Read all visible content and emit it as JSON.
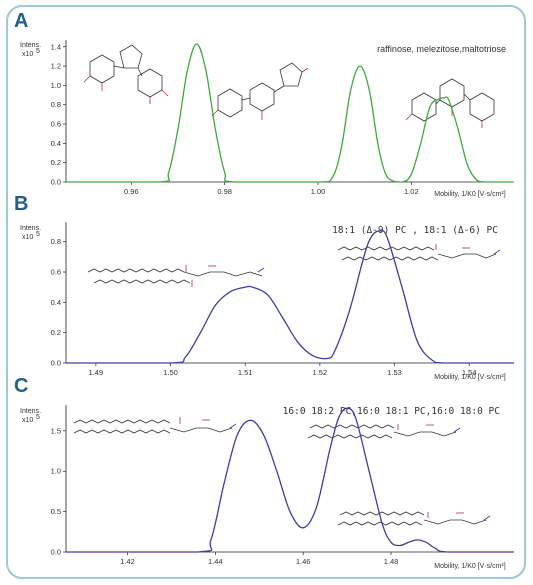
{
  "panels": [
    {
      "label": "A",
      "ylabel_top": "Intens.",
      "ylabel_bottom": "x10",
      "ylabel_exp": "5",
      "annotation": "raffinose, melezitose,maltotriose",
      "xlabel": "Mobility, 1/K0 [V·s/cm²]",
      "color": "#3caa3c"
    },
    {
      "label": "B",
      "ylabel_top": "Intens.",
      "ylabel_bottom": "x10",
      "ylabel_exp": "5",
      "annotation": "18:1 (Δ-9) PC , 18:1 (Δ-6) PC",
      "xlabel": "Mobility, 1/K0 [V·s/cm²]",
      "color": "#3c3ca8"
    },
    {
      "label": "C",
      "ylabel_top": "Intens.",
      "ylabel_bottom": "x10",
      "ylabel_exp": "5",
      "annotation": "16:0 18:2 PC,16:0 18:1 PC,16:0 18:0 PC",
      "xlabel": "Mobility, 1/K0 [V·s/cm²]",
      "color": "#3c3ca8"
    }
  ],
  "chart_data": [
    {
      "type": "line",
      "title": "raffinose, melezitose,maltotriose",
      "xlabel": "Mobility, 1/K0 [V·s/cm²]",
      "ylabel": "Intens. x10^5",
      "xlim": [
        0.946,
        1.042
      ],
      "ylim": [
        0,
        1.47
      ],
      "x_ticks": [
        "0.96",
        "0.98",
        "1.00",
        "1.02"
      ],
      "y_ticks": [
        "0.0",
        "0.2",
        "0.4",
        "0.6",
        "0.8",
        "1.0",
        "1.2",
        "1.4"
      ],
      "grid": false,
      "peaks": [
        {
          "x": 0.974,
          "y": 1.43
        },
        {
          "x": 1.009,
          "y": 1.2
        },
        {
          "x": 1.027,
          "y": 0.87
        }
      ],
      "series": [
        {
          "x": [
            0.946,
            0.966,
            0.968,
            0.97,
            0.972,
            0.974,
            0.976,
            0.978,
            0.98,
            0.982,
            1.0,
            1.003,
            1.005,
            1.007,
            1.009,
            1.011,
            1.013,
            1.015,
            1.018,
            1.02,
            1.022,
            1.024,
            1.026,
            1.027,
            1.028,
            1.03,
            1.032,
            1.034,
            1.036,
            1.042
          ],
          "y": [
            0.0,
            0.0,
            0.1,
            0.55,
            1.15,
            1.43,
            1.15,
            0.55,
            0.1,
            0.0,
            0.0,
            0.04,
            0.35,
            0.95,
            1.2,
            0.95,
            0.35,
            0.04,
            0.0,
            0.08,
            0.4,
            0.78,
            0.86,
            0.87,
            0.85,
            0.55,
            0.18,
            0.02,
            0.0,
            0.0
          ]
        }
      ]
    },
    {
      "type": "line",
      "title": "18:1 (Δ-9) PC , 18:1 (Δ-6) PC",
      "xlabel": "Mobility, 1/K0 [V·s/cm²]",
      "ylabel": "Intens. x10^5",
      "xlim": [
        1.486,
        1.546
      ],
      "ylim": [
        0,
        0.93
      ],
      "x_ticks": [
        "1.49",
        "1.50",
        "1.51",
        "1.52",
        "1.53",
        "1.54"
      ],
      "y_ticks": [
        "0.0",
        "0.2",
        "0.4",
        "0.6",
        "0.8"
      ],
      "grid": false,
      "peaks": [
        {
          "x": 1.511,
          "y": 0.5
        },
        {
          "x": 1.528,
          "y": 0.87
        }
      ],
      "series": [
        {
          "x": [
            1.486,
            1.5,
            1.502,
            1.504,
            1.506,
            1.508,
            1.51,
            1.511,
            1.513,
            1.515,
            1.517,
            1.519,
            1.521,
            1.522,
            1.524,
            1.526,
            1.527,
            1.528,
            1.529,
            1.531,
            1.533,
            1.535,
            1.537,
            1.546
          ],
          "y": [
            0.0,
            0.0,
            0.04,
            0.2,
            0.38,
            0.47,
            0.5,
            0.5,
            0.45,
            0.3,
            0.14,
            0.05,
            0.03,
            0.08,
            0.35,
            0.72,
            0.84,
            0.87,
            0.83,
            0.5,
            0.15,
            0.02,
            0.0,
            0.0
          ]
        }
      ]
    },
    {
      "type": "line",
      "title": "16:0 18:2 PC,16:0 18:1 PC,16:0 18:0 PC",
      "xlabel": "Mobility, 1/K0 [V·s/cm²]",
      "ylabel": "Intens. x10^5",
      "xlim": [
        1.406,
        1.508
      ],
      "ylim": [
        0,
        1.82
      ],
      "x_ticks": [
        "1.42",
        "1.44",
        "1.46",
        "1.48"
      ],
      "y_ticks": [
        "0.0",
        "0.5",
        "1.0",
        "1.5"
      ],
      "grid": false,
      "peaks": [
        {
          "x": 1.448,
          "y": 1.63
        },
        {
          "x": 1.47,
          "y": 1.78
        },
        {
          "x": 1.486,
          "y": 0.15
        }
      ],
      "series": [
        {
          "x": [
            1.406,
            1.436,
            1.439,
            1.442,
            1.445,
            1.448,
            1.451,
            1.454,
            1.457,
            1.46,
            1.463,
            1.466,
            1.468,
            1.47,
            1.472,
            1.475,
            1.478,
            1.48,
            1.482,
            1.484,
            1.486,
            1.488,
            1.49,
            1.493,
            1.508
          ],
          "y": [
            0.0,
            0.0,
            0.15,
            0.85,
            1.45,
            1.63,
            1.45,
            1.0,
            0.5,
            0.3,
            0.55,
            1.25,
            1.65,
            1.78,
            1.65,
            1.0,
            0.35,
            0.12,
            0.08,
            0.12,
            0.15,
            0.12,
            0.05,
            0.0,
            0.0
          ]
        }
      ]
    }
  ]
}
